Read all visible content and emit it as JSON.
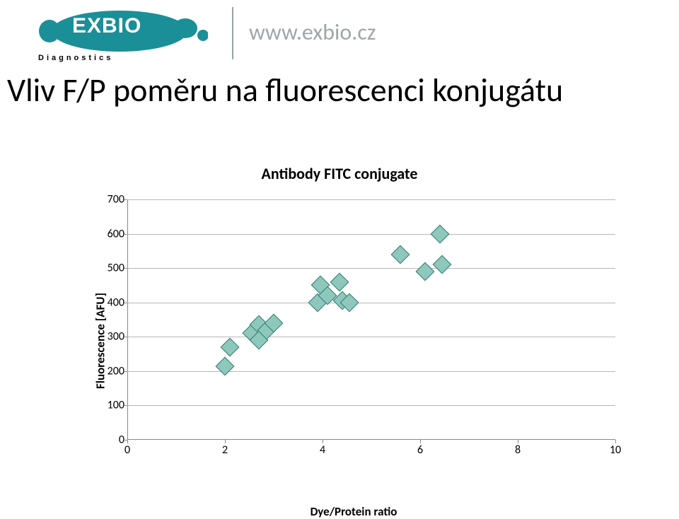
{
  "header": {
    "logo_text_front": "EXBI",
    "logo_text_O": "O",
    "diagnostics_label": "Diagnostics",
    "url": "www.exbio.cz",
    "logo_color": "#1b8f98",
    "url_color": "#9ea6ab"
  },
  "page_title": "Vliv F/P poměru na fluorescenci konjugátu",
  "chart": {
    "type": "scatter",
    "title": "Antibody FITC conjugate",
    "xlabel": "Dye/Protein ratio",
    "ylabel": "Fluorescence [AFU]",
    "xlim": [
      0,
      10
    ],
    "ylim": [
      0,
      700
    ],
    "xticks": [
      0,
      2,
      4,
      6,
      8,
      10
    ],
    "yticks": [
      0,
      100,
      200,
      300,
      400,
      500,
      600,
      700
    ],
    "grid_color": "#b7b7b7",
    "axis_color": "#888888",
    "marker_fill": "#8ec7bc",
    "marker_stroke": "#2e7a6e",
    "marker_size": 17,
    "background": "#ffffff",
    "label_fontsize": 17,
    "title_fontsize": 22,
    "tick_fontsize": 16,
    "points": [
      {
        "x": 2.0,
        "y": 215
      },
      {
        "x": 2.1,
        "y": 270
      },
      {
        "x": 2.55,
        "y": 310
      },
      {
        "x": 2.7,
        "y": 335
      },
      {
        "x": 2.7,
        "y": 290
      },
      {
        "x": 2.85,
        "y": 320
      },
      {
        "x": 3.0,
        "y": 340
      },
      {
        "x": 3.9,
        "y": 400
      },
      {
        "x": 3.95,
        "y": 450
      },
      {
        "x": 4.1,
        "y": 420
      },
      {
        "x": 4.35,
        "y": 460
      },
      {
        "x": 4.4,
        "y": 405
      },
      {
        "x": 4.55,
        "y": 400
      },
      {
        "x": 5.6,
        "y": 540
      },
      {
        "x": 6.1,
        "y": 490
      },
      {
        "x": 6.4,
        "y": 600
      },
      {
        "x": 6.45,
        "y": 510
      }
    ]
  }
}
